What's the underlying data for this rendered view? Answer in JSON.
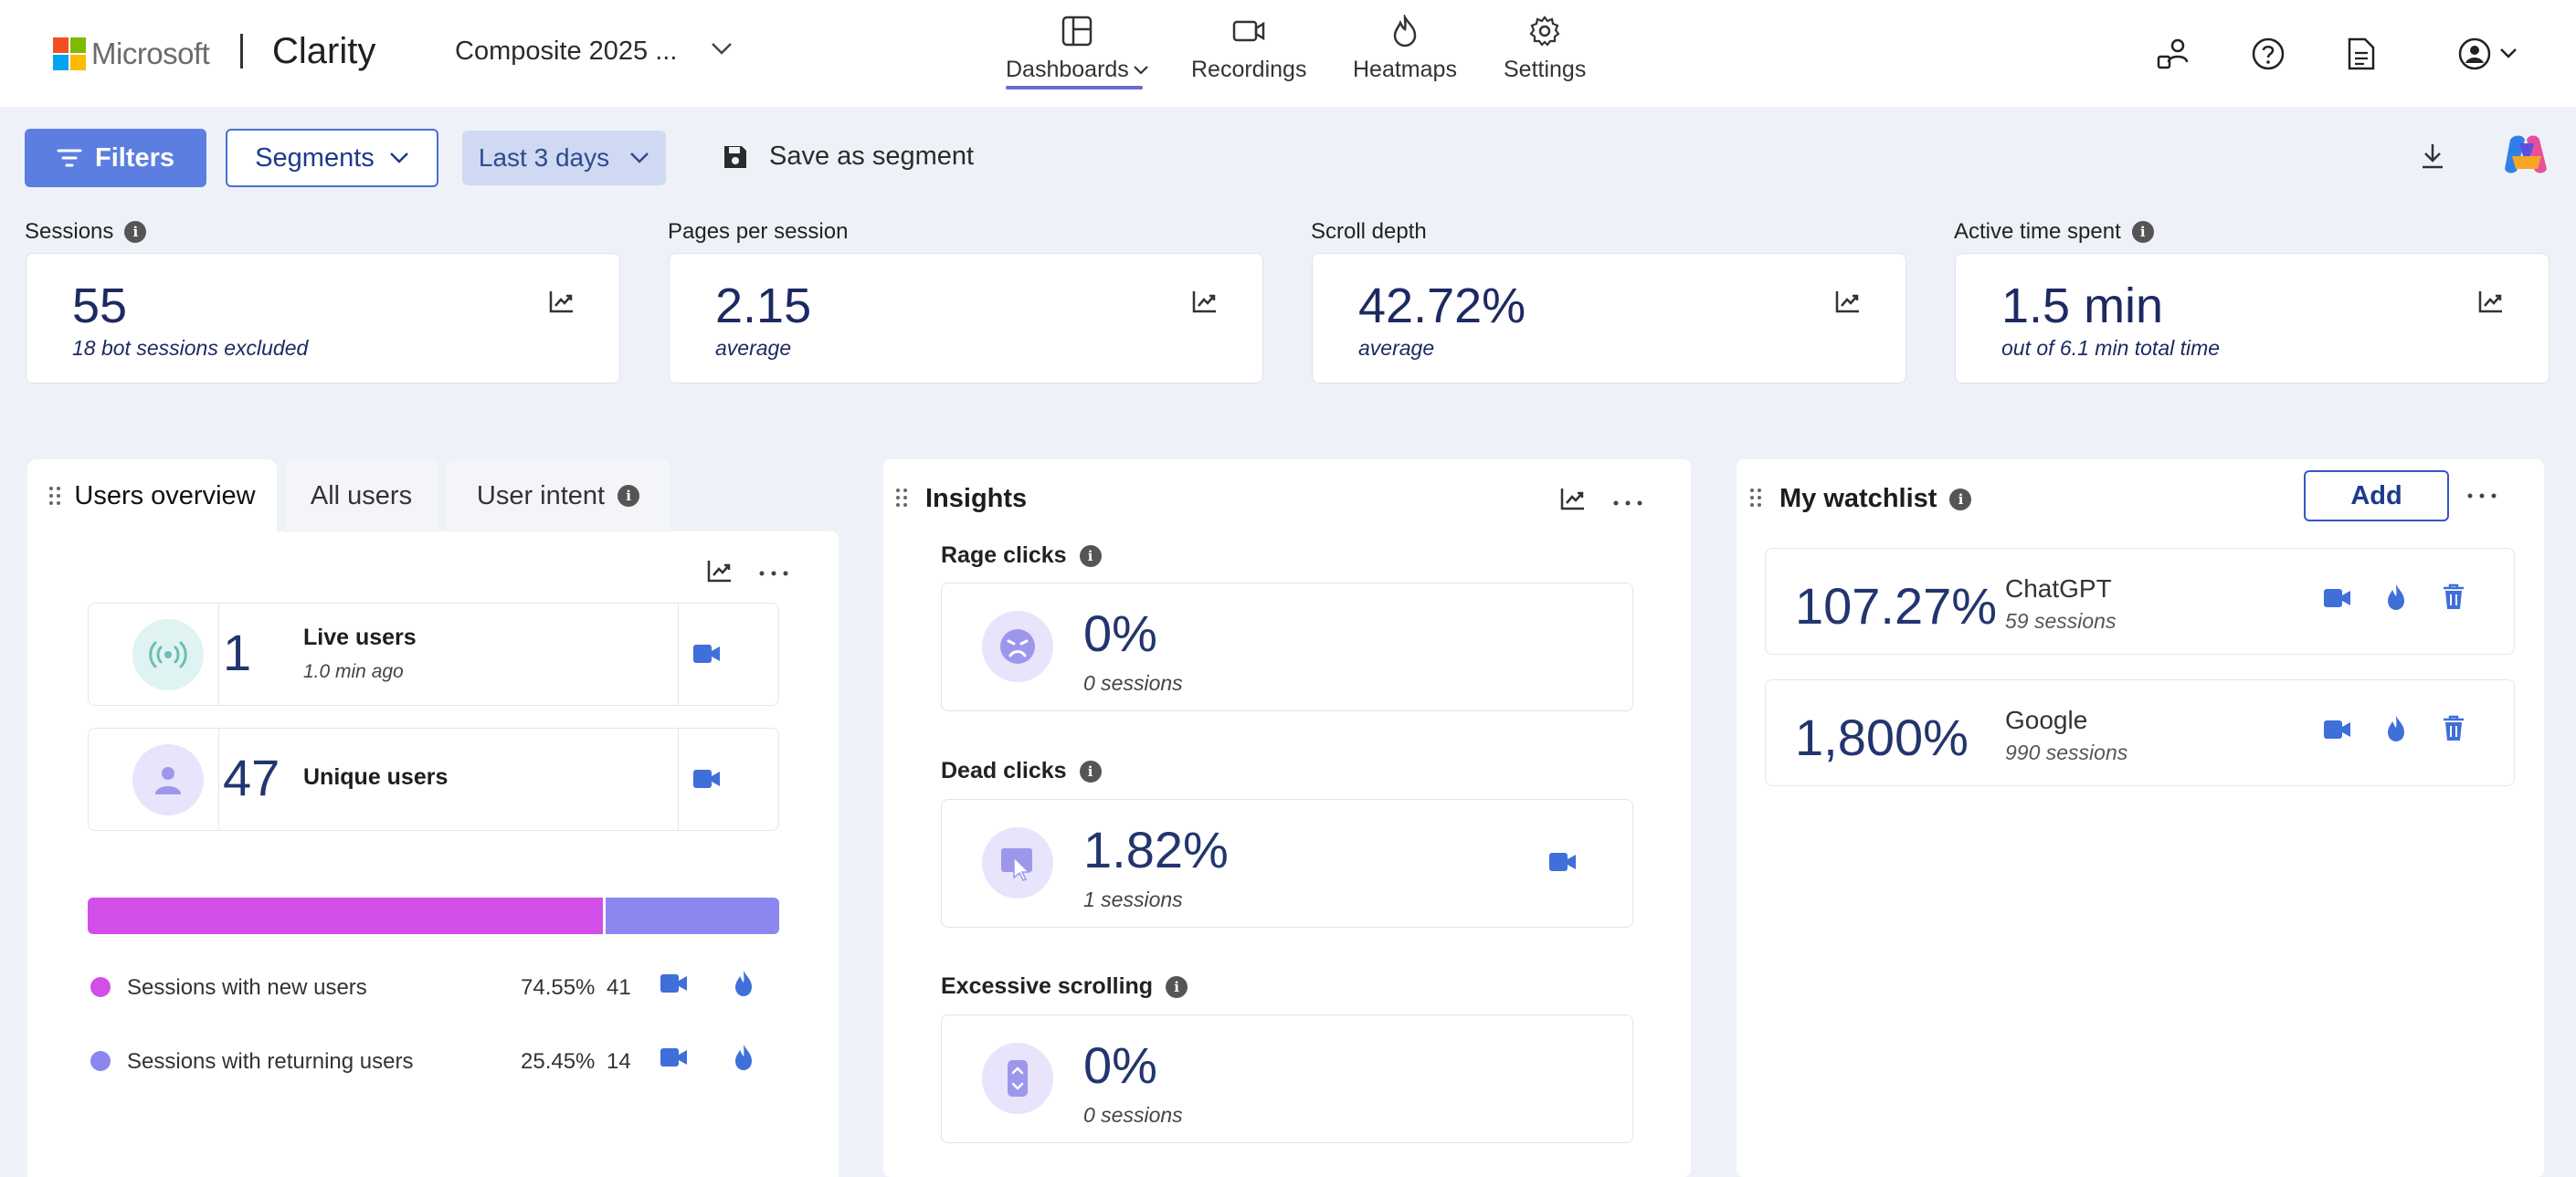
{
  "header": {
    "brand": "Microsoft",
    "app_name": "Clarity",
    "project": "Composite 2025 ...",
    "nav": [
      {
        "label": "Dashboards",
        "icon": "dashboard-icon",
        "active": true
      },
      {
        "label": "Recordings",
        "icon": "video-icon"
      },
      {
        "label": "Heatmaps",
        "icon": "flame-icon"
      },
      {
        "label": "Settings",
        "icon": "gear-icon"
      }
    ],
    "right_icons": [
      "people-icon",
      "help-icon",
      "document-icon",
      "account-icon"
    ]
  },
  "toolbar": {
    "filters_label": "Filters",
    "segments_label": "Segments",
    "date_range": "Last 3 days",
    "save_label": "Save as segment"
  },
  "metrics": [
    {
      "label": "Sessions",
      "value": "55",
      "sub": "18 bot sessions excluded",
      "info": true
    },
    {
      "label": "Pages per session",
      "value": "2.15",
      "sub": "average",
      "info": false
    },
    {
      "label": "Scroll depth",
      "value": "42.72%",
      "sub": "average",
      "info": false
    },
    {
      "label": "Active time spent",
      "value": "1.5 min",
      "sub": "out of 6.1 min total time",
      "info": true
    }
  ],
  "users_panel": {
    "tabs": [
      "Users overview",
      "All users",
      "User intent"
    ],
    "live": {
      "value": "1",
      "label": "Live users",
      "sub": "1.0 min ago"
    },
    "unique": {
      "value": "47",
      "label": "Unique users"
    },
    "split": [
      {
        "label": "Sessions with new users",
        "percent": "74.55%",
        "count": "41",
        "color": "#d14ee8",
        "fraction": 0.7455
      },
      {
        "label": "Sessions with returning users",
        "percent": "25.45%",
        "count": "14",
        "color": "#8b87ee",
        "fraction": 0.2545
      }
    ]
  },
  "insights_panel": {
    "title": "Insights",
    "items": [
      {
        "label": "Rage clicks",
        "value": "0%",
        "sub": "0 sessions"
      },
      {
        "label": "Dead clicks",
        "value": "1.82%",
        "sub": "1 sessions"
      },
      {
        "label": "Excessive scrolling",
        "value": "0%",
        "sub": "0 sessions"
      }
    ]
  },
  "watchlist_panel": {
    "title": "My watchlist",
    "add_label": "Add",
    "items": [
      {
        "value": "107.27%",
        "name": "ChatGPT",
        "sub": "59 sessions"
      },
      {
        "value": "1,800%",
        "name": "Google",
        "sub": "990 sessions"
      }
    ]
  },
  "colors": {
    "accent": "#5b7ee0",
    "navy": "#1d2a62",
    "icon_blue": "#3f6fd8"
  }
}
